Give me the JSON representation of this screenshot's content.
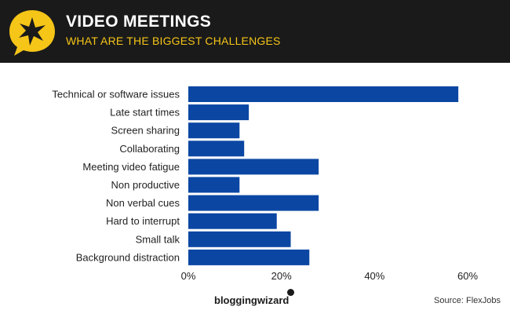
{
  "header": {
    "title": "VIDEO MEETINGS",
    "subtitle": "WHAT ARE THE BIGGEST CHALLENGES",
    "badge_icon": "starburst-speech-bubble-icon",
    "background_color": "#1a1a1a",
    "accent_color": "#f5c518"
  },
  "chart_data": {
    "type": "bar",
    "orientation": "horizontal",
    "categories": [
      "Technical or software issues",
      "Late start times",
      "Screen sharing",
      "Collaborating",
      "Meeting video fatigue",
      "Non productive",
      "Non verbal cues",
      "Hard to interrupt",
      "Small talk",
      "Background distraction"
    ],
    "values": [
      58,
      13,
      11,
      12,
      28,
      11,
      28,
      19,
      22,
      26
    ],
    "xlim": [
      0,
      60
    ],
    "x_ticks": [
      "0%",
      "20%",
      "40%",
      "60%"
    ],
    "x_tick_values": [
      0,
      20,
      40,
      60
    ],
    "bar_color": "#0b46a3",
    "grid": false
  },
  "footer": {
    "brand": "bloggingwizard",
    "source": "Source: FlexJobs"
  }
}
